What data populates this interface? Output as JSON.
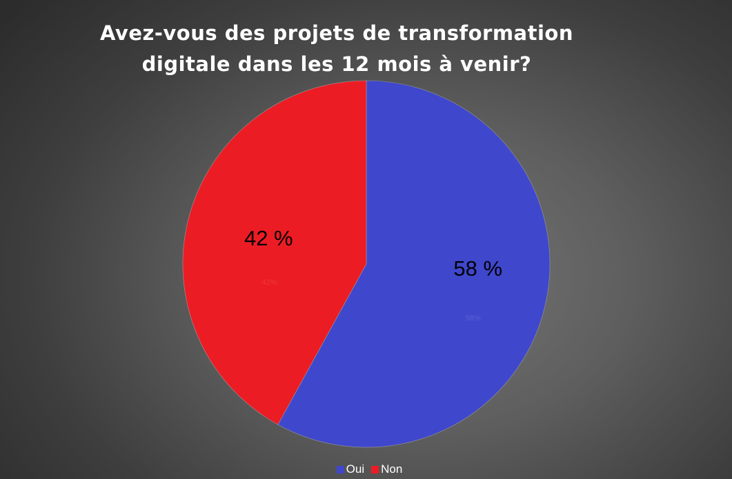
{
  "chart_data": {
    "type": "pie",
    "title_lines": [
      "Avez-vous des projets de transformation",
      "digitale dans les 12 mois à venir?"
    ],
    "slices": [
      {
        "name": "Oui",
        "value": 58,
        "label": "58 %",
        "small_label": "58%",
        "color": "#3f47cc"
      },
      {
        "name": "Non",
        "value": 42,
        "label": "42 %",
        "small_label": "42%",
        "color": "#ec1c24"
      }
    ],
    "start_angle_deg": 0,
    "direction": "clockwise",
    "legend_position": "bottom"
  }
}
